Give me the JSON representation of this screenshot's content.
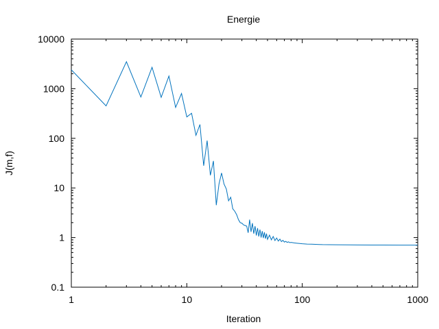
{
  "chart_data": {
    "type": "line",
    "title": "Energie",
    "xlabel": "Iteration",
    "ylabel": "J(m,f)",
    "x_scale": "log",
    "y_scale": "log",
    "xlim": [
      1,
      1000
    ],
    "ylim": [
      0.1,
      10000
    ],
    "x_ticks": [
      1,
      10,
      100,
      1000
    ],
    "x_tick_labels": [
      "1",
      "10",
      "100",
      "1000"
    ],
    "y_ticks": [
      0.1,
      1,
      10,
      100,
      1000,
      10000
    ],
    "y_tick_labels": [
      "0.1",
      "1",
      "10",
      "100",
      "1000",
      "10000"
    ],
    "grid": false,
    "legend": "none",
    "series": [
      {
        "color": "#0072bd",
        "x": [
          1,
          2,
          3,
          4,
          5,
          6,
          7,
          8,
          9,
          10,
          11,
          12,
          13,
          14,
          15,
          16,
          17,
          18,
          19,
          20,
          21,
          22,
          23,
          24,
          25,
          26,
          27,
          28,
          29,
          30,
          31,
          32,
          33,
          34,
          35,
          36,
          37,
          38,
          39,
          40,
          41,
          42,
          43,
          44,
          45,
          46,
          47,
          48,
          49,
          50,
          52,
          54,
          56,
          58,
          60,
          62,
          64,
          66,
          68,
          70,
          72,
          74,
          76,
          78,
          80,
          85,
          90,
          95,
          100,
          110,
          120,
          130,
          140,
          150,
          170,
          200,
          250,
          300,
          400,
          500,
          700,
          1000
        ],
        "y": [
          2400,
          450,
          3500,
          680,
          2700,
          670,
          1800,
          420,
          800,
          270,
          320,
          115,
          190,
          28,
          90,
          18,
          35,
          4.5,
          12,
          20,
          12,
          9.5,
          5.5,
          6.5,
          3.8,
          3.4,
          2.9,
          2.3,
          2.0,
          1.95,
          1.8,
          1.75,
          1.7,
          1.25,
          2.3,
          1.3,
          1.95,
          1.2,
          1.7,
          1.1,
          1.55,
          1.05,
          1.45,
          1.0,
          1.35,
          0.98,
          1.28,
          0.95,
          1.2,
          0.92,
          1.12,
          0.9,
          1.05,
          0.87,
          0.98,
          0.85,
          0.93,
          0.83,
          0.88,
          0.81,
          0.84,
          0.8,
          0.82,
          0.79,
          0.8,
          0.78,
          0.77,
          0.76,
          0.75,
          0.74,
          0.735,
          0.73,
          0.725,
          0.72,
          0.718,
          0.715,
          0.712,
          0.71,
          0.708,
          0.706,
          0.705,
          0.705
        ]
      }
    ]
  }
}
